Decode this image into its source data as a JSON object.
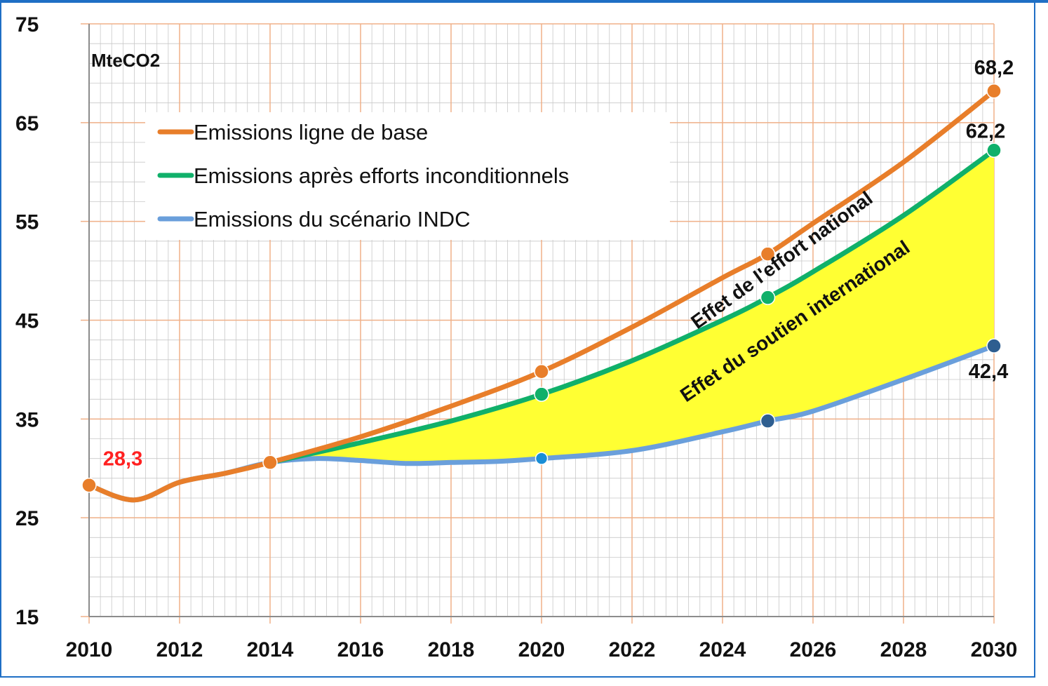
{
  "chart_data": {
    "type": "line",
    "unit_label": "MteCO2",
    "x_ticks": [
      "2010",
      "2012",
      "2014",
      "2016",
      "2018",
      "2020",
      "2022",
      "2024",
      "2026",
      "2028",
      "2030"
    ],
    "y_ticks": [
      "15",
      "25",
      "35",
      "45",
      "55",
      "65",
      "75"
    ],
    "xlim": [
      2010,
      2030
    ],
    "ylim": [
      15,
      75
    ],
    "grid": true,
    "legend_position": "top-left",
    "series": [
      {
        "name": "Emissions ligne de base",
        "color": "#E87E2A",
        "x": [
          2010,
          2011,
          2012,
          2013,
          2014,
          2016,
          2018,
          2020,
          2022,
          2024,
          2025,
          2026,
          2028,
          2030
        ],
        "y": [
          28.3,
          26.8,
          28.6,
          29.5,
          30.6,
          33.2,
          36.3,
          39.8,
          44.3,
          49.3,
          51.7,
          54.8,
          61.0,
          68.2
        ],
        "markers": [
          2010,
          2014,
          2020,
          2025,
          2030
        ]
      },
      {
        "name": "Emissions après efforts inconditionnels",
        "color": "#10B06A",
        "x": [
          2014,
          2016,
          2018,
          2020,
          2022,
          2024,
          2025,
          2026,
          2028,
          2030
        ],
        "y": [
          30.6,
          32.6,
          34.8,
          37.5,
          40.9,
          45.0,
          47.3,
          49.9,
          55.6,
          62.2
        ],
        "markers": [
          2020,
          2025,
          2030
        ]
      },
      {
        "name": "Emissions du scénario INDC",
        "color": "#6A9FDB",
        "x": [
          2010,
          2011,
          2012,
          2013,
          2014,
          2015,
          2016,
          2017,
          2018,
          2019,
          2020,
          2022,
          2024,
          2025,
          2026,
          2028,
          2030
        ],
        "y": [
          28.3,
          26.8,
          28.6,
          29.5,
          30.6,
          31.0,
          30.8,
          30.5,
          30.6,
          30.7,
          31.0,
          31.8,
          33.7,
          34.8,
          35.8,
          39.0,
          42.4
        ],
        "markers": [
          2020,
          2025,
          2030
        ]
      }
    ],
    "data_labels": [
      {
        "text": "28,3",
        "x": 2010,
        "y": 28.3,
        "color": "#FF2020"
      },
      {
        "text": "68,2",
        "x": 2030,
        "y": 68.2,
        "color": "#111111"
      },
      {
        "text": "62,2",
        "x": 2030,
        "y": 62.2,
        "color": "#111111"
      },
      {
        "text": "42,4",
        "x": 2030,
        "y": 42.4,
        "color": "#111111"
      }
    ],
    "annotations": [
      {
        "text": "Effet de l'effort national"
      },
      {
        "text": "Effet du soutien international"
      }
    ],
    "fill": {
      "between": [
        "Emissions après efforts inconditionnels",
        "Emissions du scénario INDC"
      ],
      "color": "#FFFF33",
      "from": 2014,
      "to": 2030
    },
    "colors": {
      "border": "#1F6FC5",
      "grid_major": "#F0B088",
      "grid_minor": "#C8C8C8",
      "axis": "#8C8C8C"
    }
  }
}
